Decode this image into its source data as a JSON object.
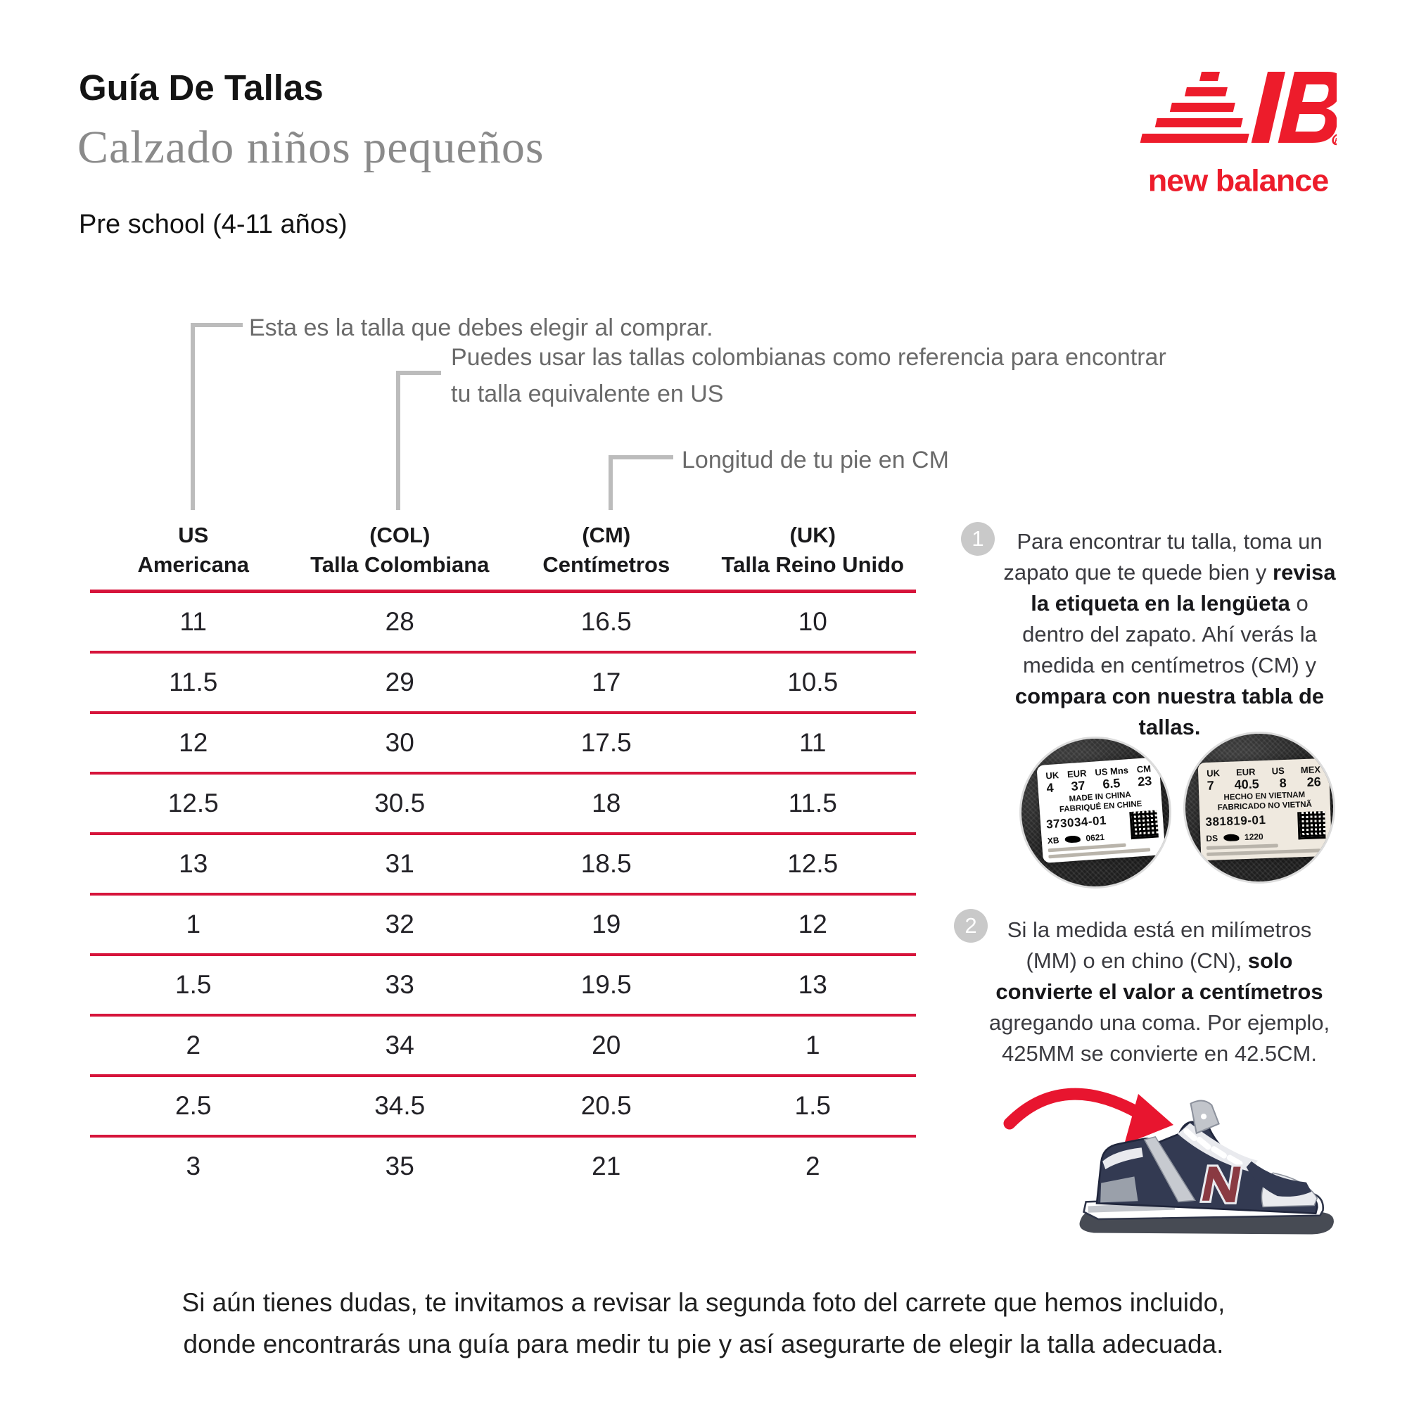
{
  "colors": {
    "table_line_red": "#D6143B",
    "brand_red": "#ED1C2B",
    "callout_gray": "#BCBCBC",
    "subtitle_gray": "#8A8A8A"
  },
  "header": {
    "title": "Guía De Tallas",
    "subtitle": "Calzado niños pequeños",
    "age_group": "Pre school (4-11 años)",
    "brand_wordmark": "new balance"
  },
  "callouts": {
    "us": "Esta es la talla que debes elegir al comprar.",
    "col_line1": "Puedes usar las tallas colombianas como referencia para encontrar",
    "col_line2": "tu talla equivalente en US",
    "cm": "Longitud de tu pie en CM"
  },
  "table": {
    "headers": [
      {
        "top": "US",
        "bottom": "Americana"
      },
      {
        "top": "(COL)",
        "bottom": "Talla Colombiana"
      },
      {
        "top": "(CM)",
        "bottom": "Centímetros"
      },
      {
        "top": "(UK)",
        "bottom": "Talla Reino Unido"
      }
    ],
    "rows": [
      [
        "11",
        "28",
        "16.5",
        "10"
      ],
      [
        "11.5",
        "29",
        "17",
        "10.5"
      ],
      [
        "12",
        "30",
        "17.5",
        "11"
      ],
      [
        "12.5",
        "30.5",
        "18",
        "11.5"
      ],
      [
        "13",
        "31",
        "18.5",
        "12.5"
      ],
      [
        "1",
        "32",
        "19",
        "12"
      ],
      [
        "1.5",
        "33",
        "19.5",
        "13"
      ],
      [
        "2",
        "34",
        "20",
        "1"
      ],
      [
        "2.5",
        "34.5",
        "20.5",
        "1.5"
      ],
      [
        "3",
        "35",
        "21",
        "2"
      ]
    ]
  },
  "steps": {
    "step1": {
      "number": "1",
      "segments": [
        {
          "t": "Para encontrar tu talla, toma un zapato que te quede bien y ",
          "b": false
        },
        {
          "t": "revisa la etiqueta en la lengüeta",
          "b": true
        },
        {
          "t": " o dentro del zapato. Ahí verás la medida en centímetros (CM) y ",
          "b": false
        },
        {
          "t": "compara con nuestra tabla de tallas.",
          "b": true
        }
      ]
    },
    "step2": {
      "number": "2",
      "segments": [
        {
          "t": "Si la medida está en milímetros (MM) o en chino (CN), ",
          "b": false
        },
        {
          "t": "solo convierte el valor a centímetros",
          "b": true
        },
        {
          "t": " agregando una coma. Por ejemplo, 425MM se convierte en 42.5CM.",
          "b": false
        }
      ]
    }
  },
  "labels": {
    "label1": {
      "cols": [
        "UK",
        "EUR",
        "US Mns",
        "CM"
      ],
      "vals": [
        "4",
        "37",
        "6.5",
        "23"
      ],
      "made1": "MADE IN CHINA",
      "made2": "FABRIQUÉ EN CHINE",
      "code": "373034-01",
      "sub_left": "XB",
      "sub_right": "0621"
    },
    "label2": {
      "cols": [
        "UK",
        "EUR",
        "US",
        "MEX"
      ],
      "vals": [
        "7",
        "40.5",
        "8",
        "26"
      ],
      "made1": "HECHO EN VIETNAM",
      "made2": "FABRICADO NO VIETNÃ",
      "code": "381819-01",
      "sub_left": "DS",
      "sub_right": "1220"
    }
  },
  "footer": {
    "line1": "Si aún tienes dudas, te invitamos a revisar la segunda foto del carrete que hemos incluido,",
    "line2": "donde encontrarás una guía para medir tu pie y así asegurarte de elegir la talla adecuada."
  }
}
